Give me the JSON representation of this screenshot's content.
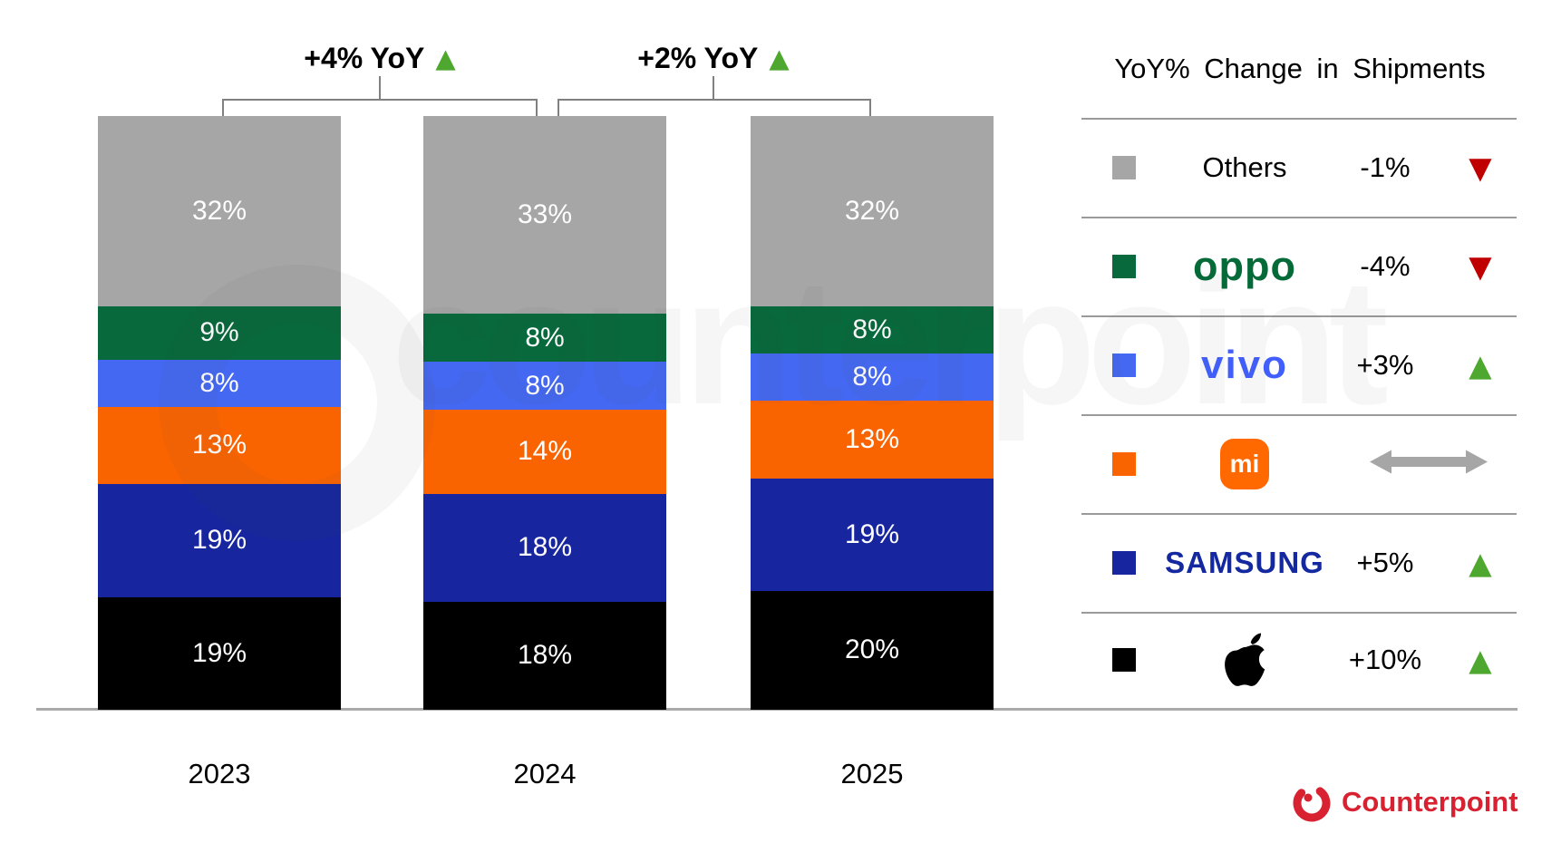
{
  "chart_data": {
    "type": "bar",
    "stacked": true,
    "title": "",
    "categories": [
      "2023",
      "2024",
      "2025"
    ],
    "series": [
      {
        "name": "Others",
        "color": "#A6A6A6",
        "values": [
          32,
          33,
          32
        ]
      },
      {
        "name": "OPPO",
        "color": "#07693C",
        "values": [
          9,
          8,
          8
        ]
      },
      {
        "name": "vivo",
        "color": "#4468F2",
        "values": [
          8,
          8,
          8
        ]
      },
      {
        "name": "Xiaomi",
        "color": "#F96400",
        "values": [
          13,
          14,
          13
        ]
      },
      {
        "name": "Samsung",
        "color": "#17269E",
        "values": [
          19,
          18,
          19
        ]
      },
      {
        "name": "Apple",
        "color": "#000000",
        "values": [
          19,
          18,
          20
        ]
      }
    ],
    "value_suffix": "%",
    "annotations": [
      {
        "label": "+4% YoY",
        "direction": "up",
        "between": [
          "2023",
          "2024"
        ]
      },
      {
        "label": "+2% YoY",
        "direction": "up",
        "between": [
          "2024",
          "2025"
        ]
      }
    ],
    "legend_title": "YoY% Change in Shipments",
    "legend": [
      {
        "brand": "Others",
        "logo": "text",
        "change": "-1%",
        "direction": "down"
      },
      {
        "brand": "OPPO",
        "logo": "oppo",
        "change": "-4%",
        "direction": "down"
      },
      {
        "brand": "vivo",
        "logo": "vivo",
        "change": "+3%",
        "direction": "up"
      },
      {
        "brand": "Xiaomi",
        "logo": "mi",
        "change": "",
        "direction": "flat"
      },
      {
        "brand": "Samsung",
        "logo": "samsung",
        "change": "+5%",
        "direction": "up"
      },
      {
        "brand": "Apple",
        "logo": "apple",
        "change": "+10%",
        "direction": "up"
      }
    ],
    "legend_position": "right",
    "grid": false
  },
  "colors": {
    "up_triangle": "#4EA72E",
    "down_triangle": "#C00000",
    "flat_arrow": "#A6A6A6",
    "oppo_logo": "#046A38",
    "vivo_logo": "#415FFF",
    "samsung_logo": "#1428A0",
    "mi_logo_bg": "#FF6900",
    "counterpoint_red": "#D92231",
    "axis_line": "#A9A9A9"
  },
  "watermark": "counterpoint",
  "footer": {
    "brand": "Counterpoint"
  },
  "mi_logo_text": "mi"
}
